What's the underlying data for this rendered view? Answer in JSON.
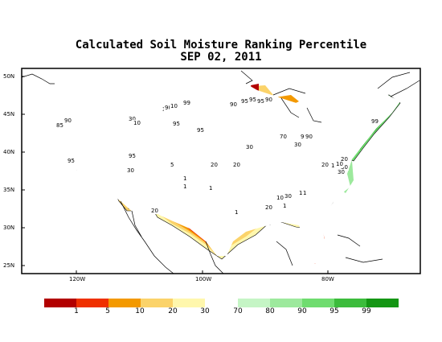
{
  "title": "Calculated Soil Moisture Ranking Percentile",
  "subtitle": "SEP 02, 2011",
  "axes": {
    "latitude_labels": [
      "50N",
      "45N",
      "40N",
      "35N",
      "30N",
      "25N"
    ],
    "longitude_labels": [
      "120W",
      "100W",
      "80W"
    ]
  },
  "colors": {
    "p0_1": "#b20000",
    "p1_5": "#ef3000",
    "p5_10": "#f39900",
    "p10_20": "#fbd36a",
    "p20_30": "#fff7ad",
    "p70_80": "#c5f5c5",
    "p80_90": "#9de99d",
    "p90_95": "#6fdc6f",
    "p95_99": "#3cbc3c",
    "p99_100": "#149614"
  },
  "colorbar": {
    "labels": [
      "1",
      "5",
      "10",
      "20",
      "30",
      "70",
      "80",
      "90",
      "95",
      "99"
    ]
  },
  "contour_labels": [
    "90",
    "85",
    "95",
    "30",
    "10",
    "30",
    "95",
    "90",
    "95",
    "95",
    "10",
    "99",
    "90",
    "95",
    "95",
    "95",
    "90",
    "90",
    "30",
    "30",
    "70",
    "90",
    "99",
    "20",
    "30",
    "10",
    "20",
    "30",
    "5",
    "1",
    "1",
    "1",
    "1",
    "20",
    "20",
    "1",
    "1",
    "1",
    "30",
    "10",
    "20",
    "30",
    "10",
    "20"
  ]
}
